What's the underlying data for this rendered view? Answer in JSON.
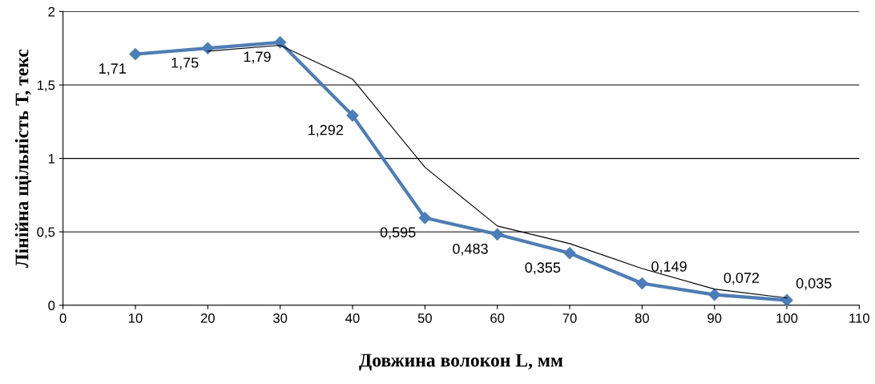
{
  "chart_data": {
    "type": "line",
    "xlabel": "Довжина волокон L, мм",
    "ylabel": "Лінійна щільність Т, текс",
    "series": [
      {
        "color": "#4a7ebb",
        "marker": "diamond",
        "x": [
          10,
          20,
          30,
          40,
          50,
          60,
          70,
          80,
          90,
          100
        ],
        "values": [
          1.71,
          1.75,
          1.79,
          1.292,
          0.595,
          0.483,
          0.355,
          0.149,
          0.072,
          0.035
        ],
        "value_labels": [
          "1,71",
          "1,75",
          "1,79",
          "1,292",
          "0,595",
          "0,483",
          "0,355",
          "0,149",
          "0,072",
          "0,035"
        ]
      },
      {
        "color": "#000000",
        "marker": "none",
        "x": [
          20,
          30,
          40,
          50,
          60,
          70,
          80,
          90,
          100
        ],
        "values": [
          1.73,
          1.77,
          1.54,
          0.94,
          0.54,
          0.42,
          0.25,
          0.11,
          0.05
        ]
      }
    ],
    "xlim": [
      0,
      110
    ],
    "xticks": [
      0,
      10,
      20,
      30,
      40,
      50,
      60,
      70,
      80,
      90,
      100,
      110
    ],
    "ylim": [
      0,
      2
    ],
    "yticks": [
      0,
      {
        "value": 0.5,
        "label": "0,5"
      },
      1,
      {
        "value": 1.5,
        "label": "1,5"
      },
      2
    ],
    "grid": "y",
    "legend": false
  }
}
